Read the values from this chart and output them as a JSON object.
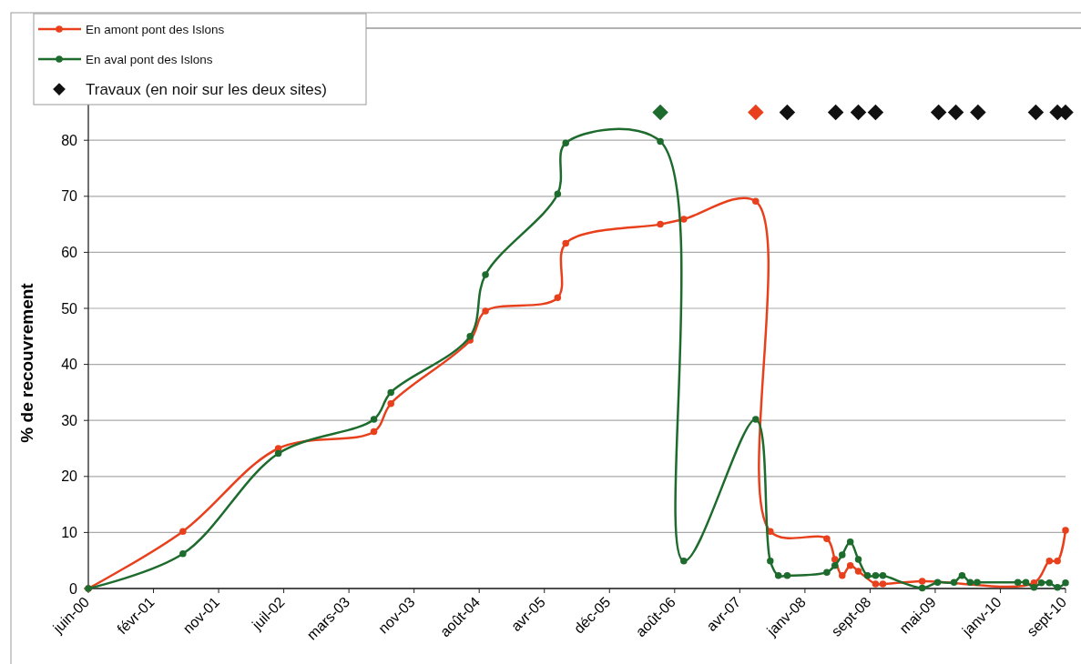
{
  "chart_data": {
    "type": "line",
    "ylabel": "% de recouvrement",
    "xlim": [
      "2000-06-23",
      "2010-09-29"
    ],
    "xticks": [
      {
        "value": "2000-06-23",
        "label": "juin-00"
      },
      {
        "value": "2001-02-28",
        "label": "févr-01"
      },
      {
        "value": "2001-11-05",
        "label": "nov-01"
      },
      {
        "value": "2002-07-13",
        "label": "juil-02"
      },
      {
        "value": "2003-03-20",
        "label": "mars-03"
      },
      {
        "value": "2003-11-25",
        "label": "nov-03"
      },
      {
        "value": "2004-08-01",
        "label": "août-04"
      },
      {
        "value": "2005-04-08",
        "label": "avr-05"
      },
      {
        "value": "2005-12-14",
        "label": "déc-05"
      },
      {
        "value": "2006-08-21",
        "label": "août-06"
      },
      {
        "value": "2007-04-28",
        "label": "avr-07"
      },
      {
        "value": "2008-01-03",
        "label": "janv-08"
      },
      {
        "value": "2008-09-09",
        "label": "sept-08"
      },
      {
        "value": "2009-05-17",
        "label": "mai-09"
      },
      {
        "value": "2010-01-22",
        "label": "janv-10"
      },
      {
        "value": "2010-09-29",
        "label": "sept-10"
      }
    ],
    "ylim": [
      0,
      100
    ],
    "yticks": [
      0,
      10,
      20,
      30,
      40,
      50,
      60,
      70,
      80
    ],
    "grid": "y",
    "legend": "top left",
    "marker": "circle",
    "line_style": "solid",
    "series": [
      {
        "name": "En amont pont des Islons",
        "color": "#e8401c",
        "x": [
          "2000-06-23",
          "2001-06-21",
          "2002-06-22",
          "2003-06-24",
          "2003-08-28",
          "2004-06-27",
          "2004-08-25",
          "2005-05-29",
          "2005-06-29",
          "2006-06-27",
          "2006-09-25",
          "2007-06-28",
          "2007-08-23",
          "2008-03-27",
          "2008-04-27",
          "2008-05-25",
          "2008-06-25",
          "2008-07-26",
          "2008-09-30",
          "2008-10-28",
          "2009-03-28",
          "2010-05-31",
          "2010-07-29",
          "2010-08-29",
          "2010-09-29"
        ],
        "values": [
          0,
          10.2,
          25,
          28,
          33,
          44.3,
          49.5,
          51.9,
          61.6,
          65,
          65.9,
          69.1,
          10.2,
          8.9,
          5.2,
          2.3,
          4.1,
          3.1,
          0.8,
          0.8,
          1.3,
          1,
          4.9,
          4.9,
          10.4
        ]
      },
      {
        "name": "En aval pont des Islons",
        "color": "#1e6b2e",
        "x": [
          "2000-06-23",
          "2001-06-21",
          "2002-06-22",
          "2003-06-24",
          "2003-08-28",
          "2004-06-27",
          "2004-08-25",
          "2005-05-29",
          "2005-06-29",
          "2006-06-27",
          "2006-09-25",
          "2007-06-28",
          "2007-08-23",
          "2007-09-23",
          "2007-10-27",
          "2008-03-27",
          "2008-04-27",
          "2008-05-25",
          "2008-06-25",
          "2008-07-26",
          "2008-08-30",
          "2008-09-30",
          "2008-10-28",
          "2009-03-28",
          "2009-05-26",
          "2009-07-28",
          "2009-08-28",
          "2009-09-28",
          "2009-10-25",
          "2010-03-30",
          "2010-04-30",
          "2010-05-31",
          "2010-06-28",
          "2010-07-29",
          "2010-08-29",
          "2010-09-29"
        ],
        "values": [
          0,
          6.2,
          24.1,
          30.2,
          35,
          45,
          56,
          70.4,
          79.5,
          79.8,
          4.9,
          30.2,
          4.9,
          2.3,
          2.3,
          2.9,
          4.1,
          6,
          8.3,
          5.2,
          2.3,
          2.3,
          2.3,
          0.1,
          1.1,
          1.1,
          2.3,
          1.1,
          1.1,
          1.1,
          1.1,
          0.2,
          1,
          1,
          0.2,
          1
        ]
      },
      {
        "name": "Travaux (en noir sur les deux sites)",
        "color": "#111111",
        "type": "scatter",
        "marker": "diamond",
        "x": [
          "2006-06-27",
          "2007-06-28",
          "2007-10-27",
          "2008-04-30",
          "2008-07-26",
          "2008-09-30",
          "2009-05-30",
          "2009-08-04",
          "2009-10-28",
          "2010-06-07",
          "2010-08-29",
          "2010-09-29"
        ],
        "values": [
          85,
          85,
          85,
          85,
          85,
          85,
          85,
          85,
          85,
          85,
          85,
          85
        ],
        "colors": [
          "#1e6b2e",
          "#e8401c",
          "#111111",
          "#111111",
          "#111111",
          "#111111",
          "#111111",
          "#111111",
          "#111111",
          "#111111",
          "#111111",
          "#111111"
        ]
      }
    ]
  }
}
